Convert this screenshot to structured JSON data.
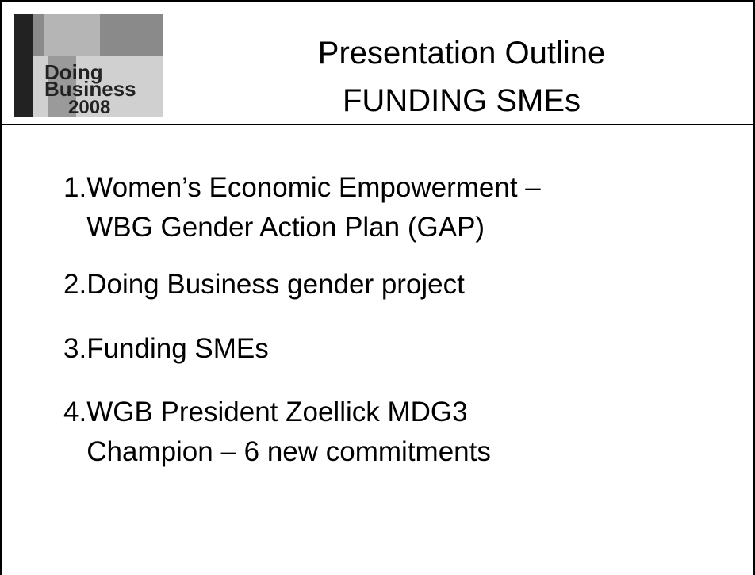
{
  "header": {
    "title": [
      "Presentation Outline",
      "FUNDING SMEs"
    ],
    "logo": [
      "Doing",
      "Business",
      "2008"
    ]
  },
  "items": [
    {
      "number": "1.",
      "lines": [
        "Women’s Economic Empowerment –",
        "WBG Gender Action Plan (GAP)"
      ]
    },
    {
      "number": "2.",
      "lines": [
        "Doing Business gender project"
      ]
    },
    {
      "number": "3.",
      "lines": [
        "Funding SMEs"
      ]
    },
    {
      "number": "4.",
      "lines": [
        "WGB President Zoellick MDG3",
        "Champion – 6 new commitments"
      ]
    }
  ]
}
